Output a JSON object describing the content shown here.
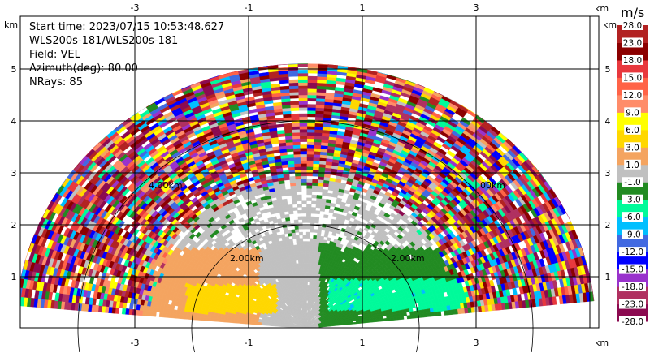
{
  "chart_data": {
    "type": "heatmap",
    "subtype": "ppi-radar-sector",
    "info": {
      "start_time": "Start time: 2023/07/15 10:53:48.627",
      "instrument": "WLS200s-181/WLS200s-181",
      "field": "Field: VEL",
      "azimuth": "Azimuth(deg): 80.00",
      "nrays": "NRays: 85"
    },
    "nrays": 85,
    "sector_deg": [
      -85,
      84
    ],
    "max_range_km": 5.1,
    "x_unit": "km",
    "y_unit": "km",
    "xlim": [
      -5,
      5.2
    ],
    "ylim": [
      0,
      6
    ],
    "x_ticks": [
      "-3",
      "-1",
      "1",
      "3"
    ],
    "x_tick_values": [
      -3,
      -1,
      1,
      3
    ],
    "y_ticks": [
      "1",
      "2",
      "3",
      "4",
      "5"
    ],
    "y_tick_values": [
      1,
      2,
      3,
      4,
      5
    ],
    "extra_grid_x": [
      5
    ],
    "range_rings": [
      {
        "range_km": 2,
        "label": "2.00km"
      },
      {
        "range_km": 4,
        "label": "4.00km"
      }
    ],
    "ring_label_right_4km": "00km",
    "colorbar": {
      "unit": "m/s",
      "bounds": [
        -28,
        -23,
        -18,
        -15,
        -12,
        -9,
        -6,
        -3,
        -1,
        1,
        3,
        6,
        9,
        12,
        15,
        18,
        23,
        28
      ],
      "labels": [
        "-28.0",
        "-23.0",
        "-18.0",
        "-15.0",
        "-12.0",
        "-9.0",
        "-6.0",
        "-3.0",
        "-1.0",
        "1.0",
        "3.0",
        "6.0",
        "9.0",
        "12.0",
        "15.0",
        "18.0",
        "23.0",
        "28.0"
      ],
      "colors": [
        "#8b0a50",
        "#b03060",
        "#9932cc",
        "#0000ff",
        "#4169e1",
        "#00bfff",
        "#00fa9a",
        "#228b22",
        "#c0c0c0",
        "#f4a460",
        "#ffd700",
        "#ffff00",
        "#ff8c69",
        "#ff6347",
        "#e8383d",
        "#8b0000",
        "#b22222"
      ]
    },
    "regions": {
      "near_west": "gray/orange with gold core (approaching ~ +1 to +6 m/s)",
      "near_east": "green with spring-green core (receding ~ -1 to -6 m/s)",
      "far": "noisy, all bins"
    }
  }
}
